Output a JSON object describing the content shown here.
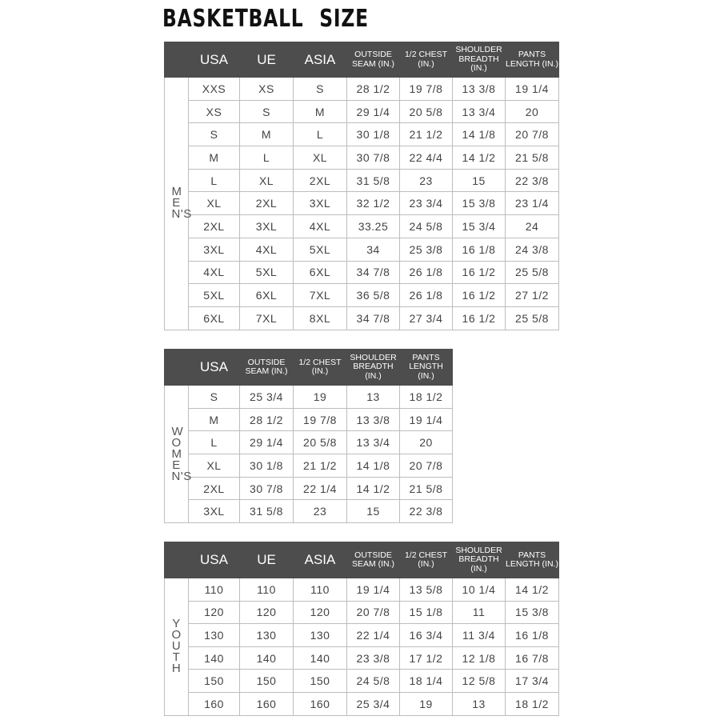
{
  "title": "BASKETBALL  SIZE",
  "colors": {
    "header_bg": "#4d4d4d",
    "header_text": "#ffffff",
    "grid": "#bdbdbd"
  },
  "mens": {
    "label": "MEN'S",
    "headers": [
      "USA",
      "UE",
      "ASIA",
      "OUTSIDE SEAM (IN.)",
      "1/2 CHEST (IN.)",
      "SHOULDER BREADTH (IN.)",
      "PANTS LENGTH (IN.)"
    ],
    "rows": [
      [
        "XXS",
        "XS",
        "S",
        "28 1/2",
        "19 7/8",
        "13 3/8",
        "19 1/4"
      ],
      [
        "XS",
        "S",
        "M",
        "29 1/4",
        "20 5/8",
        "13 3/4",
        "20"
      ],
      [
        "S",
        "M",
        "L",
        "30 1/8",
        "21 1/2",
        "14 1/8",
        "20 7/8"
      ],
      [
        "M",
        "L",
        "XL",
        "30 7/8",
        "22 4/4",
        "14 1/2",
        "21 5/8"
      ],
      [
        "L",
        "XL",
        "2XL",
        "31 5/8",
        "23",
        "15",
        "22 3/8"
      ],
      [
        "XL",
        "2XL",
        "3XL",
        "32 1/2",
        "23 3/4",
        "15 3/8",
        "23 1/4"
      ],
      [
        "2XL",
        "3XL",
        "4XL",
        "33.25",
        "24 5/8",
        "15 3/4",
        "24"
      ],
      [
        "3XL",
        "4XL",
        "5XL",
        "34",
        "25 3/8",
        "16 1/8",
        "24 3/8"
      ],
      [
        "4XL",
        "5XL",
        "6XL",
        "34 7/8",
        "26 1/8",
        "16 1/2",
        "25 5/8"
      ],
      [
        "5XL",
        "6XL",
        "7XL",
        "36 5/8",
        "26 1/8",
        "16 1/2",
        "27 1/2"
      ],
      [
        "6XL",
        "7XL",
        "8XL",
        "34 7/8",
        "27 3/4",
        "16 1/2",
        "25 5/8"
      ]
    ]
  },
  "womens": {
    "label": "WOMEN'S",
    "headers": [
      "USA",
      "OUTSIDE SEAM (IN.)",
      "1/2 CHEST (IN.)",
      "SHOULDER BREADTH (IN.)",
      "PANTS LENGTH (IN.)"
    ],
    "rows": [
      [
        "S",
        "25 3/4",
        "19",
        "13",
        "18 1/2"
      ],
      [
        "M",
        "28 1/2",
        "19 7/8",
        "13 3/8",
        "19 1/4"
      ],
      [
        "L",
        "29 1/4",
        "20 5/8",
        "13 3/4",
        "20"
      ],
      [
        "XL",
        "30 1/8",
        "21 1/2",
        "14 1/8",
        "20 7/8"
      ],
      [
        "2XL",
        "30 7/8",
        "22 1/4",
        "14 1/2",
        "21 5/8"
      ],
      [
        "3XL",
        "31 5/8",
        "23",
        "15",
        "22 3/8"
      ]
    ]
  },
  "youth": {
    "label": "YOUTH",
    "headers": [
      "USA",
      "UE",
      "ASIA",
      "OUTSIDE SEAM (IN.)",
      "1/2 CHEST (IN.)",
      "SHOULDER BREADTH (IN.)",
      "PANTS LENGTH (IN.)"
    ],
    "rows": [
      [
        "110",
        "110",
        "110",
        "19 1/4",
        "13 5/8",
        "10 1/4",
        "14 1/2"
      ],
      [
        "120",
        "120",
        "120",
        "20 7/8",
        "15 1/8",
        "11",
        "15 3/8"
      ],
      [
        "130",
        "130",
        "130",
        "22 1/4",
        "16 3/4",
        "11 3/4",
        "16 1/8"
      ],
      [
        "140",
        "140",
        "140",
        "23 3/8",
        "17 1/2",
        "12 1/8",
        "16 7/8"
      ],
      [
        "150",
        "150",
        "150",
        "24 5/8",
        "18 1/4",
        "12 5/8",
        "17 3/4"
      ],
      [
        "160",
        "160",
        "160",
        "25 3/4",
        "19",
        "13",
        "18 1/2"
      ]
    ]
  }
}
